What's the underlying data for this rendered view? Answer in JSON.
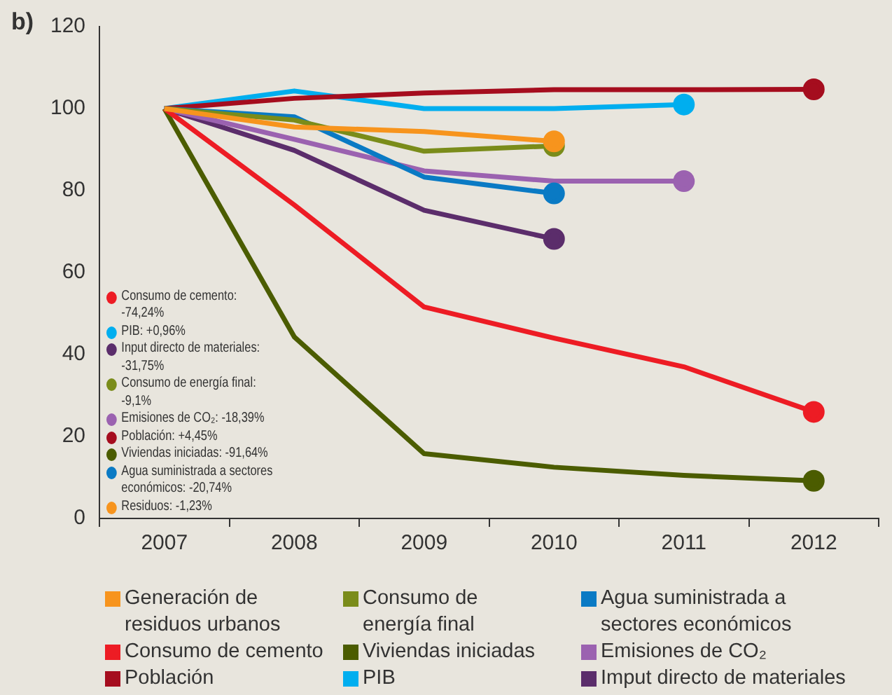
{
  "chart_data": {
    "type": "line",
    "title": "b)",
    "categories": [
      "2007",
      "2008",
      "2009",
      "2010",
      "2011",
      "2012"
    ],
    "series": [
      {
        "name": "Generación de residuos urbanos",
        "color": "#f7941d",
        "values": [
          100,
          95.5,
          94.4,
          92,
          null,
          null
        ]
      },
      {
        "name": "Consumo de energía final",
        "color": "#7a8c1a",
        "values": [
          100,
          97.2,
          89.6,
          90.9,
          null,
          null
        ]
      },
      {
        "name": "Agua suministrada a sectores económicos",
        "color": "#0a7ac4",
        "values": [
          100,
          98,
          83.3,
          79.3,
          null,
          null
        ]
      },
      {
        "name": "Consumo de cemento",
        "color": "#ed1c24",
        "values": [
          100,
          76.5,
          51.6,
          44,
          37,
          26
        ]
      },
      {
        "name": "Viviendas iniciadas",
        "color": "#4b5c00",
        "values": [
          100,
          44.3,
          15.8,
          12.5,
          10.5,
          9.2
        ]
      },
      {
        "name": "Emisiones de CO₂",
        "color": "#9b62b0",
        "values": [
          100,
          92.5,
          84.8,
          82.3,
          82.3,
          null
        ]
      },
      {
        "name": "Población",
        "color": "#a50d1e",
        "values": [
          100,
          102.5,
          103.8,
          104.6,
          104.6,
          104.7
        ]
      },
      {
        "name": "PIB",
        "color": "#00aeef",
        "values": [
          100,
          104.3,
          100,
          100,
          101,
          null
        ]
      },
      {
        "name": "Imput directo de materiales",
        "color": "#5b2d6b",
        "values": [
          100,
          89.8,
          75.2,
          68.2,
          null,
          null
        ]
      }
    ],
    "ylim": [
      0,
      120
    ],
    "yticks": [
      0,
      20,
      40,
      60,
      80,
      100,
      120
    ],
    "grid": false,
    "legend": "bottom",
    "line_style": "solid",
    "annotations": [
      "Consumo de cemento: -74,24%",
      "PIB: +0,96%",
      "Input directo de materiales: -31,75%",
      "Consumo de energía final: -9,1%",
      "Emisiones de CO₂: -18,39%",
      "Población: +4,45%",
      "Viviendas iniciadas: -91,64%",
      "Agua suministrada a sectores económicos: -20,74%",
      "Residuos: -1,23%"
    ]
  }
}
